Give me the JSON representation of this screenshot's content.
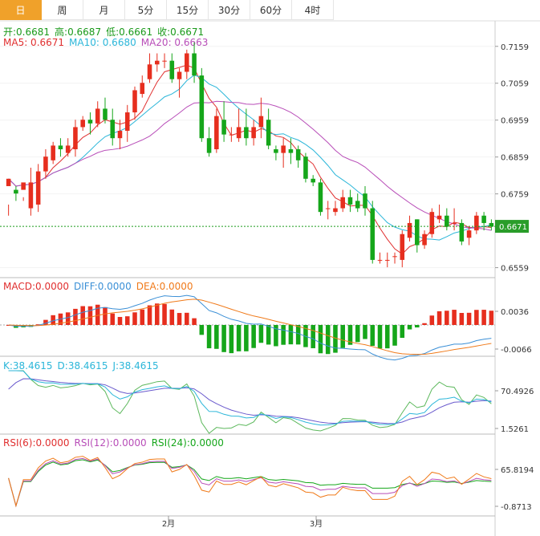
{
  "tabs": [
    "日",
    "周",
    "月",
    "5分",
    "15分",
    "30分",
    "60分",
    "4时"
  ],
  "active_tab": 0,
  "ohlc": {
    "open": "开:0.6681",
    "high": "高:0.6687",
    "low": "低:0.6661",
    "close": "收:0.6671"
  },
  "ma": {
    "ma5": "MA5: 0.6671",
    "ma10": "MA10: 0.6680",
    "ma20": "MA20: 0.6663"
  },
  "macd_legend": {
    "macd": "MACD:0.0000",
    "diff": "DIFF:0.0000",
    "dea": "DEA:0.0000"
  },
  "kdj_legend": {
    "k": "K:38.4615",
    "d": "D:38.4615",
    "j": "J:38.4615"
  },
  "rsi_legend": {
    "r6": "RSI(6):0.0000",
    "r12": "RSI(12):0.0000",
    "r24": "RSI(24):0.0000"
  },
  "colors": {
    "up": "#e62e1e",
    "down": "#15a61a",
    "ma5": "#e02f2f",
    "ma10": "#2bb6d9",
    "ma20": "#b84db8",
    "diff": "#3a8fd6",
    "dea": "#f07a1a",
    "accent": "#f0a12a",
    "current": "#1a9a1a"
  },
  "chart_data": [
    {
      "type": "candlestick",
      "name": "price",
      "yticks": [
        "0.7159",
        "0.7059",
        "0.6959",
        "0.6859",
        "0.6759",
        "0.6559"
      ],
      "current_price": "0.6671",
      "xticks": [
        "2月",
        "3月"
      ],
      "candles": [
        [
          0.678,
          0.68,
          0.673,
          0.67
        ],
        [
          0.677,
          0.676,
          0.678,
          0.674
        ],
        [
          0.677,
          0.679,
          0.675,
          0.674
        ],
        [
          0.672,
          0.679,
          0.683,
          0.67
        ],
        [
          0.673,
          0.682,
          0.684,
          0.671
        ],
        [
          0.682,
          0.686,
          0.688,
          0.68
        ],
        [
          0.685,
          0.689,
          0.69,
          0.684
        ],
        [
          0.689,
          0.688,
          0.691,
          0.686
        ],
        [
          0.687,
          0.689,
          0.691,
          0.686
        ],
        [
          0.688,
          0.694,
          0.696,
          0.686
        ],
        [
          0.694,
          0.696,
          0.697,
          0.693
        ],
        [
          0.696,
          0.695,
          0.698,
          0.692
        ],
        [
          0.695,
          0.699,
          0.701,
          0.694
        ],
        [
          0.699,
          0.696,
          0.702,
          0.695
        ],
        [
          0.696,
          0.691,
          0.699,
          0.689
        ],
        [
          0.691,
          0.693,
          0.696,
          0.688
        ],
        [
          0.693,
          0.698,
          0.7,
          0.69
        ],
        [
          0.698,
          0.704,
          0.705,
          0.696
        ],
        [
          0.703,
          0.706,
          0.708,
          0.702
        ],
        [
          0.707,
          0.711,
          0.714,
          0.706
        ],
        [
          0.711,
          0.712,
          0.714,
          0.709
        ],
        [
          0.712,
          0.712,
          0.714,
          0.71
        ],
        [
          0.712,
          0.707,
          0.714,
          0.706
        ],
        [
          0.707,
          0.709,
          0.71,
          0.702
        ],
        [
          0.709,
          0.714,
          0.715,
          0.707
        ],
        [
          0.714,
          0.708,
          0.717,
          0.706
        ],
        [
          0.708,
          0.691,
          0.71,
          0.69
        ],
        [
          0.691,
          0.687,
          0.694,
          0.686
        ],
        [
          0.688,
          0.697,
          0.699,
          0.687
        ],
        [
          0.696,
          0.692,
          0.701,
          0.69
        ],
        [
          0.692,
          0.692,
          0.694,
          0.69
        ],
        [
          0.691,
          0.694,
          0.699,
          0.69
        ],
        [
          0.694,
          0.691,
          0.699,
          0.689
        ],
        [
          0.691,
          0.694,
          0.696,
          0.689
        ],
        [
          0.694,
          0.697,
          0.702,
          0.691
        ],
        [
          0.696,
          0.689,
          0.699,
          0.688
        ],
        [
          0.688,
          0.687,
          0.689,
          0.685
        ],
        [
          0.687,
          0.689,
          0.691,
          0.683
        ],
        [
          0.688,
          0.687,
          0.691,
          0.684
        ],
        [
          0.688,
          0.685,
          0.689,
          0.683
        ],
        [
          0.686,
          0.68,
          0.687,
          0.679
        ],
        [
          0.68,
          0.679,
          0.681,
          0.678
        ],
        [
          0.679,
          0.671,
          0.68,
          0.67
        ],
        [
          0.672,
          0.672,
          0.674,
          0.669
        ],
        [
          0.671,
          0.672,
          0.674,
          0.67
        ],
        [
          0.672,
          0.675,
          0.677,
          0.671
        ],
        [
          0.675,
          0.673,
          0.677,
          0.671
        ],
        [
          0.674,
          0.672,
          0.676,
          0.671
        ],
        [
          0.676,
          0.672,
          0.678,
          0.67
        ],
        [
          0.672,
          0.658,
          0.674,
          0.657
        ],
        [
          0.658,
          0.658,
          0.66,
          0.657
        ],
        [
          0.658,
          0.658,
          0.66,
          0.656
        ],
        [
          0.659,
          0.659,
          0.66,
          0.657
        ],
        [
          0.658,
          0.665,
          0.666,
          0.656
        ],
        [
          0.664,
          0.668,
          0.67,
          0.663
        ],
        [
          0.669,
          0.662,
          0.669,
          0.66
        ],
        [
          0.662,
          0.665,
          0.666,
          0.661
        ],
        [
          0.665,
          0.671,
          0.672,
          0.664
        ],
        [
          0.669,
          0.67,
          0.673,
          0.668
        ],
        [
          0.67,
          0.667,
          0.672,
          0.666
        ],
        [
          0.668,
          0.668,
          0.672,
          0.666
        ],
        [
          0.668,
          0.663,
          0.669,
          0.662
        ],
        [
          0.664,
          0.666,
          0.667,
          0.662
        ],
        [
          0.666,
          0.67,
          0.671,
          0.665
        ],
        [
          0.67,
          0.668,
          0.671,
          0.666
        ],
        [
          0.668,
          0.667,
          0.669,
          0.666
        ]
      ]
    },
    {
      "type": "bar+line",
      "name": "macd",
      "yticks": [
        "0.0036",
        "-0.0066"
      ]
    },
    {
      "type": "line",
      "name": "kdj",
      "yticks": [
        "70.4926",
        "1.5261"
      ]
    },
    {
      "type": "line",
      "name": "rsi",
      "yticks": [
        "65.8194",
        "-0.8713"
      ]
    }
  ]
}
